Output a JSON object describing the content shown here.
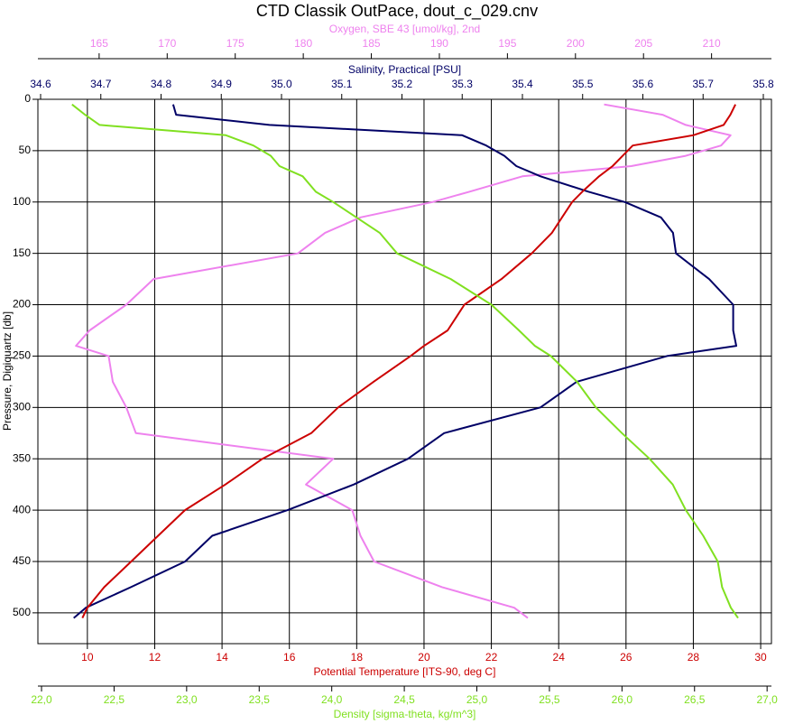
{
  "chart_data": {
    "type": "profile",
    "title": "CTD Classik OutPace, dout_c_029.cnv",
    "y_label": "Pressure, Digiquartz [db]",
    "ylim": [
      0,
      530
    ],
    "yticks": [
      0,
      50,
      100,
      150,
      200,
      250,
      300,
      350,
      400,
      450,
      500
    ],
    "grid": true,
    "pressure": [
      5,
      15,
      25,
      35,
      45,
      55,
      65,
      75,
      90,
      100,
      115,
      130,
      150,
      175,
      200,
      225,
      240,
      250,
      275,
      300,
      325,
      350,
      375,
      400,
      425,
      450,
      475,
      495,
      505
    ],
    "series": [
      {
        "name": "Potential Temperature [ITS-90, deg C]",
        "color": "#cc0000",
        "axis": "bottom",
        "xlim": [
          8.53,
          30.32
        ],
        "xticks": [
          10,
          12,
          14,
          16,
          18,
          20,
          22,
          24,
          26,
          28,
          30
        ],
        "values": [
          29.25,
          29.1,
          28.9,
          28.0,
          26.2,
          25.9,
          25.6,
          25.2,
          24.7,
          24.4,
          24.1,
          23.8,
          23.2,
          22.3,
          21.2,
          20.7,
          20.0,
          19.6,
          18.5,
          17.45,
          16.65,
          15.2,
          14.1,
          12.9,
          12.1,
          11.3,
          10.5,
          10.0,
          9.85
        ]
      },
      {
        "name": "Density [sigma-theta, kg/m^3]",
        "color": "#80e020",
        "axis": "bottom2",
        "xlim": [
          21.975,
          27.03
        ],
        "xticks": [
          {
            "value": 22,
            "label": "22,0"
          },
          {
            "value": 22.5,
            "label": "22,5"
          },
          {
            "value": 23,
            "label": "23,0"
          },
          {
            "value": 23.5,
            "label": "23,5"
          },
          {
            "value": 24,
            "label": "24,0"
          },
          {
            "value": 24.5,
            "label": "24,5"
          },
          {
            "value": 25,
            "label": "25,0"
          },
          {
            "value": 25.5,
            "label": "25,5"
          },
          {
            "value": 26,
            "label": "26,0"
          },
          {
            "value": 26.5,
            "label": "26,5"
          },
          {
            "value": 27,
            "label": "27,0"
          }
        ],
        "values": [
          22.21,
          22.3,
          22.4,
          23.27,
          23.46,
          23.58,
          23.64,
          23.8,
          23.89,
          24.01,
          24.17,
          24.33,
          24.45,
          24.82,
          25.1,
          25.29,
          25.4,
          25.51,
          25.69,
          25.82,
          26.0,
          26.19,
          26.35,
          26.44,
          26.56,
          26.66,
          26.69,
          26.75,
          26.8
        ]
      },
      {
        "name": "Salinity, Practical [PSU]",
        "color": "#000066",
        "axis": "top",
        "xlim": [
          34.5955,
          35.8135
        ],
        "xticks": [
          34.6,
          34.7,
          34.8,
          34.9,
          {
            "value": 35,
            "label": "35.0"
          },
          35.1,
          35.2,
          35.3,
          35.4,
          35.5,
          35.6,
          35.7,
          35.8
        ],
        "values": [
          34.82,
          34.825,
          34.98,
          35.3,
          35.34,
          35.37,
          35.39,
          35.43,
          35.51,
          35.57,
          35.63,
          35.65,
          35.655,
          35.71,
          35.75,
          35.75,
          35.755,
          35.64,
          35.49,
          35.43,
          35.27,
          35.21,
          35.12,
          35.01,
          34.885,
          34.84,
          34.75,
          34.675,
          34.655
        ]
      },
      {
        "name": "Oxygen, SBE 43 [umol/kg], 2nd",
        "color": "#ee82ee",
        "axis": "top2",
        "xlim": [
          160.5,
          214.4
        ],
        "xticks": [
          165,
          170,
          175,
          180,
          185,
          190,
          195,
          200,
          205,
          210
        ],
        "values": [
          202.1,
          206.4,
          208.1,
          211.4,
          210.7,
          208.1,
          204.1,
          196.1,
          192.2,
          189.5,
          184.2,
          181.6,
          179.6,
          169.0,
          167.0,
          164.3,
          163.3,
          165.7,
          166.0,
          167.0,
          167.7,
          182.2,
          180.2,
          183.6,
          184.2,
          185.2,
          190.2,
          195.5,
          196.5
        ]
      }
    ]
  }
}
